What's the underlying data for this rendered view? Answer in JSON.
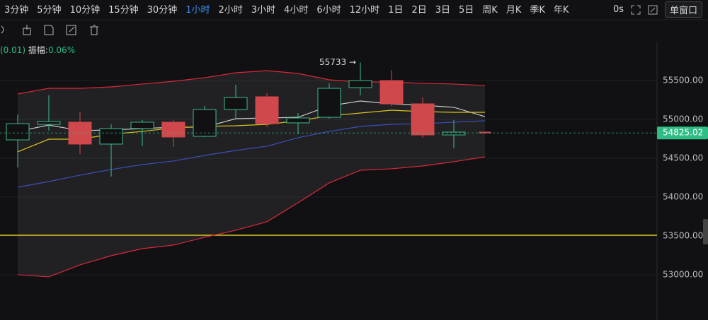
{
  "toolbar": {
    "intervals": [
      "3分钟",
      "5分钟",
      "10分钟",
      "15分钟",
      "30分钟",
      "1小时",
      "2小时",
      "3小时",
      "4小时",
      "6小时",
      "12小时",
      "1日",
      "2日",
      "3日",
      "5日",
      "周K",
      "月K",
      "季K",
      "年K"
    ],
    "active_interval": 5,
    "timer": "0s",
    "window_mode": "单窗口"
  },
  "info": {
    "change": "(0.01)",
    "amplitude_label": "振幅:",
    "amplitude": "0.06%"
  },
  "chart_data": {
    "type": "candlestick",
    "categories": [
      null,
      null,
      null,
      null,
      null,
      null,
      null,
      null,
      null,
      null,
      null,
      null,
      null,
      null,
      null,
      null
    ],
    "open": [
      54736,
      54936,
      54964,
      54682,
      54882,
      54964,
      54782,
      55127,
      55291,
      54955,
      55027,
      55409,
      55500,
      55200,
      54800,
      54836
    ],
    "high": [
      55064,
      55309,
      55100,
      54936,
      54991,
      54991,
      55173,
      55445,
      55336,
      55082,
      55464,
      55733,
      55636,
      55282,
      54991,
      54836
    ],
    "low": [
      54382,
      54855,
      54555,
      54264,
      54655,
      54645,
      54773,
      55018,
      54900,
      54809,
      55009,
      55309,
      55173,
      54764,
      54627,
      54825
    ],
    "close": [
      54945,
      54973,
      54682,
      54882,
      54964,
      54773,
      55127,
      55282,
      54945,
      55018,
      55400,
      55500,
      55200,
      54800,
      54836,
      54825
    ],
    "up_color": "#3dbb8a",
    "down_color": "#d0474c",
    "lines": [
      {
        "color": "#d9283a",
        "values": [
          55327,
          55400,
          55400,
          55418,
          55455,
          55491,
          55536,
          55600,
          55627,
          55591,
          55509,
          55482,
          55482,
          55464,
          55455,
          55436
        ]
      },
      {
        "color": "#d9283a",
        "values": [
          53000,
          52973,
          53127,
          53245,
          53336,
          53382,
          53482,
          53573,
          53682,
          53927,
          54182,
          54345,
          54364,
          54400,
          54455,
          54518
        ]
      },
      {
        "color": "#3b4fb8",
        "values": [
          54127,
          54200,
          54282,
          54355,
          54418,
          54464,
          54536,
          54600,
          54655,
          54764,
          54845,
          54909,
          54936,
          54945,
          54964,
          54982
        ]
      },
      {
        "color": "#c8c8c8",
        "values": [
          54845,
          54927,
          54855,
          54864,
          54882,
          54900,
          54900,
          55009,
          55018,
          55027,
          55173,
          55236,
          55200,
          55182,
          55155,
          55036
        ]
      },
      {
        "color": "#d8c21a",
        "values": [
          54582,
          54745,
          54745,
          54809,
          54845,
          54891,
          54909,
          54918,
          54936,
          54982,
          55045,
          55082,
          55118,
          55100,
          55091,
          55091
        ]
      }
    ],
    "price_line": {
      "value": 53509,
      "color": "#d8c21a"
    },
    "last_price": 54825.02,
    "last_price_color": "#2ebd85",
    "annotations": [
      {
        "text": "55733 →",
        "value": 55733
      }
    ],
    "ylim": [
      52554,
      55991
    ],
    "yticks": [
      {
        "value": 53000,
        "label": "53000.00"
      },
      {
        "value": 53500,
        "label": "53500.00"
      },
      {
        "value": 54000,
        "label": "54000.00"
      },
      {
        "value": 54500,
        "label": "54500.00"
      },
      {
        "value": 55000,
        "label": "55000.00"
      },
      {
        "value": 55500,
        "label": "55500.00"
      }
    ],
    "grid": true
  }
}
